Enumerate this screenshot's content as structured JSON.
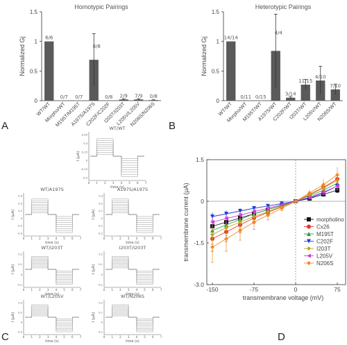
{
  "panel_letters": {
    "a": "A",
    "b": "B",
    "c": "C",
    "d": "D"
  },
  "chart_data": [
    {
      "panel": "A",
      "type": "bar",
      "title": "Homotypic Pairings",
      "ylabel": "Normalized Gj",
      "ylim": [
        0,
        1.5
      ],
      "yticks": [
        "0",
        "0.5",
        "1",
        "1.5"
      ],
      "categories": [
        "WT/WT",
        "Morpho/WT",
        "M195T/M195T",
        "A197S/A197S",
        "C202F/C202F",
        "I203T/I203T",
        "L205V/L205V",
        "N206S/N206S"
      ],
      "values": [
        1.0,
        0.0,
        0.0,
        0.69,
        0.0,
        0.02,
        0.02,
        0.01
      ],
      "errors": [
        0,
        0,
        0,
        0.44,
        0,
        0.01,
        0.01,
        0.005
      ],
      "labels": [
        "6/6",
        "0/7",
        "0/7",
        "8/8",
        "0/8",
        "2/9",
        "7/9",
        "0/8"
      ]
    },
    {
      "panel": "B",
      "type": "bar",
      "title": "Heterotypic Pairings",
      "ylabel": "Normalized Gj",
      "ylim": [
        0,
        1.5
      ],
      "yticks": [
        "0",
        "0.5",
        "1",
        "1.5"
      ],
      "categories": [
        "WT/WT",
        "Morpho/WT",
        "M195T/WT",
        "A197S/WT",
        "C202F/WT",
        "I203T/WT",
        "L205V/WT",
        "N206S/WT"
      ],
      "values": [
        1.0,
        0.0,
        0.0,
        0.84,
        0.05,
        0.27,
        0.34,
        0.19
      ],
      "errors": [
        0,
        0,
        0,
        0.62,
        0.02,
        0.09,
        0.24,
        0.09
      ],
      "labels": [
        "14/14",
        "0/11",
        "0/15",
        "4/4",
        "3/14",
        "11/15",
        "4/10",
        "7/10"
      ]
    },
    {
      "panel": "C",
      "type": "line",
      "ylabel": "I (µA)",
      "xlabel": "time (s)",
      "xlim": [
        0,
        7
      ],
      "xticks": [
        "0",
        "1",
        "2",
        "3",
        "4",
        "5",
        "6",
        "7"
      ],
      "traces": [
        {
          "title": "WT/WT",
          "yticks": [
            "0.45",
            "0.3",
            "0.15",
            "0",
            "-0.15",
            "-0.3"
          ]
        },
        {
          "title": "WT/A197S",
          "yticks": [
            "0.4",
            "0.3",
            "0.2",
            "0",
            "-0.2",
            "-0.3"
          ]
        },
        {
          "title": "A197S/A197S",
          "yticks": [
            "0.3",
            "0.2",
            "0.1",
            "0",
            "-0.1",
            "-0.2"
          ]
        },
        {
          "title": "WT/I203T",
          "yticks": [
            "0.2",
            "0.1",
            "0",
            "-0.1"
          ]
        },
        {
          "title": "I203T/I203T",
          "yticks": [
            "0.2",
            "0.1",
            "0",
            "-0.1"
          ]
        },
        {
          "title": "WT/L205V",
          "yticks": [
            "0.3",
            "0.2",
            "0",
            "-0.2"
          ]
        },
        {
          "title": "WT/N206S",
          "yticks": [
            "0.2",
            "0.1",
            "0",
            "-0.1"
          ]
        }
      ]
    },
    {
      "panel": "D",
      "type": "line",
      "xlabel": "transmembrane voltage (mV)",
      "ylabel": "transmembrane current (µA)",
      "xlim": [
        -160,
        90
      ],
      "ylim": [
        -3.0,
        1.5
      ],
      "xticks": [
        "-150",
        "-75",
        "0",
        "75"
      ],
      "yticks": [
        "1.5",
        "0",
        "-1.5",
        "-3.0"
      ],
      "x": [
        -150,
        -125,
        -100,
        -75,
        -50,
        -25,
        0,
        25,
        50,
        75
      ],
      "series": [
        {
          "name": "morpholino",
          "color": "#111111",
          "marker": "square",
          "values": [
            -0.9,
            -0.75,
            -0.6,
            -0.45,
            -0.3,
            -0.15,
            0.0,
            0.1,
            0.25,
            0.4
          ],
          "err": [
            0.2,
            0.17,
            0.14,
            0.11,
            0.08,
            0.05,
            0,
            0.04,
            0.06,
            0.08
          ]
        },
        {
          "name": "Cx26",
          "color": "#e8352b",
          "marker": "circle",
          "values": [
            -1.35,
            -1.1,
            -0.85,
            -0.6,
            -0.4,
            -0.2,
            0.0,
            0.25,
            0.5,
            0.8
          ],
          "err": [
            0.45,
            0.35,
            0.28,
            0.2,
            0.13,
            0.07,
            0,
            0.1,
            0.16,
            0.22
          ]
        },
        {
          "name": "M195T",
          "color": "#2c9e3a",
          "marker": "triangle-up",
          "values": [
            -1.05,
            -0.85,
            -0.65,
            -0.45,
            -0.3,
            -0.15,
            0.0,
            0.2,
            0.4,
            0.65
          ],
          "err": [
            0.3,
            0.25,
            0.2,
            0.15,
            0.1,
            0.05,
            0,
            0.08,
            0.12,
            0.16
          ]
        },
        {
          "name": "C202F",
          "color": "#1f3fd6",
          "marker": "triangle-down",
          "values": [
            -0.55,
            -0.45,
            -0.35,
            -0.25,
            -0.17,
            -0.08,
            0.0,
            0.12,
            0.3,
            0.55
          ],
          "err": [
            0.15,
            0.12,
            0.1,
            0.08,
            0.06,
            0.04,
            0,
            0.05,
            0.08,
            0.12
          ]
        },
        {
          "name": "I203T",
          "color": "#b8a91a",
          "marker": "diamond",
          "values": [
            -1.2,
            -0.95,
            -0.75,
            -0.55,
            -0.37,
            -0.18,
            0.0,
            0.23,
            0.48,
            0.75
          ],
          "err": [
            0.35,
            0.28,
            0.22,
            0.16,
            0.1,
            0.06,
            0,
            0.09,
            0.14,
            0.2
          ]
        },
        {
          "name": "L205V",
          "color": "#d23fd6",
          "marker": "triangle-left",
          "values": [
            -0.75,
            -0.62,
            -0.5,
            -0.37,
            -0.25,
            -0.12,
            0.0,
            0.15,
            0.33,
            0.55
          ],
          "err": [
            0.2,
            0.16,
            0.13,
            0.1,
            0.07,
            0.05,
            0,
            0.06,
            0.09,
            0.13
          ]
        },
        {
          "name": "N206S",
          "color": "#f08a24",
          "marker": "diamond",
          "values": [
            -1.65,
            -1.35,
            -1.05,
            -0.75,
            -0.5,
            -0.25,
            0.0,
            0.3,
            0.6,
            0.95
          ],
          "err": [
            0.55,
            0.45,
            0.35,
            0.26,
            0.17,
            0.09,
            0,
            0.12,
            0.2,
            0.28
          ]
        }
      ]
    }
  ]
}
